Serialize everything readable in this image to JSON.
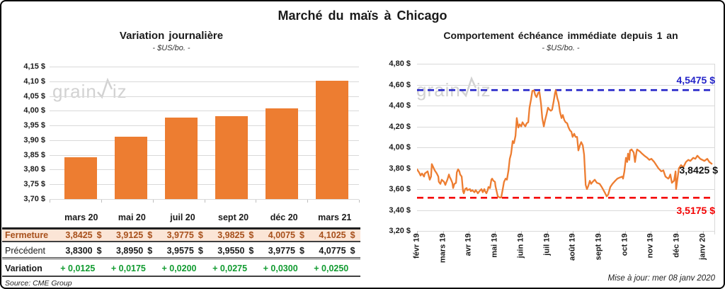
{
  "title": "Marché du maïs à Chicago",
  "watermark": {
    "part1": "grain",
    "part2": "iz"
  },
  "colors": {
    "bar_orange": "#ED7D31",
    "close_text": "#A8511C",
    "close_bg": "#FBE5D6",
    "variation_green": "#119b30",
    "resistance_blue": "#2323C8",
    "support_red": "#F40000",
    "grid": "#D9D9D9"
  },
  "left_chart": {
    "title": "Variation  journalière",
    "subtitle": "- $US/bo. -",
    "chart_data": {
      "type": "bar",
      "categories": [
        "mars 20",
        "mai 20",
        "juil 20",
        "sept 20",
        "déc 20",
        "mars 21"
      ],
      "values": [
        3.8425,
        3.9125,
        3.9775,
        3.9825,
        4.0075,
        4.1025
      ],
      "title": "Variation journalière",
      "xlabel": "",
      "ylabel": "$US/bo.",
      "ylim": [
        3.7,
        4.15
      ],
      "ytick_step": 0.05,
      "grid": true,
      "ytick_labels": [
        "4,15 $",
        "4,10 $",
        "4,05 $",
        "4,00 $",
        "3,95 $",
        "3,90 $",
        "3,85 $",
        "3,80 $",
        "3,75 $",
        "3,70 $"
      ]
    },
    "table": {
      "header": [
        "mars 20",
        "mai 20",
        "juil 20",
        "sept 20",
        "déc 20",
        "mars 21"
      ],
      "currency": "$",
      "rows": [
        {
          "label": "Fermeture",
          "style": "close",
          "suffix": "$",
          "values": [
            "3,8425",
            "3,9125",
            "3,9775",
            "3,9825",
            "4,0075",
            "4,1025"
          ]
        },
        {
          "label": "Précédent",
          "style": "prev",
          "suffix": "$",
          "values": [
            "3,8300",
            "3,8950",
            "3,9575",
            "3,9550",
            "3,9775",
            "4,0775"
          ]
        },
        {
          "label": "Variation",
          "style": "var",
          "suffix": "",
          "values": [
            "+ 0,0125",
            "+ 0,0175",
            "+ 0,0200",
            "+ 0,0275",
            "+ 0,0300",
            "+ 0,0250"
          ]
        }
      ]
    },
    "source": "Source: CME Group"
  },
  "right_chart": {
    "title": "Comportement  échéance immédiate  depuis 1 an",
    "subtitle": "- $US/bo. -",
    "annotations": {
      "high": "4,5475 $",
      "last": "3,8425 $",
      "low": "3,5175 $"
    },
    "updated": "Mise à jour: mer 08 janv 2020",
    "chart_data": {
      "type": "line",
      "x_unit": "months since févr 2019",
      "x_labels": [
        "févr 19",
        "mars 19",
        "avr 19",
        "mai 19",
        "juin 19",
        "juil 19",
        "août 19",
        "sept 19",
        "oct 19",
        "nov 19",
        "déc 19",
        "janv 20"
      ],
      "ylim": [
        3.2,
        4.8
      ],
      "ytick_step": 0.2,
      "grid": true,
      "ytick_labels": [
        "4,80 $",
        "4,60 $",
        "4,40 $",
        "4,20 $",
        "4,00 $",
        "3,80 $",
        "3,60 $",
        "3,40 $",
        "3,20 $"
      ],
      "reference_lines": [
        {
          "value": 4.5475,
          "label": "4,5475 $",
          "color": "#2323C8",
          "style": "dashed"
        },
        {
          "value": 3.5175,
          "label": "3,5175 $",
          "color": "#F40000",
          "style": "dashed"
        }
      ],
      "last_value": 3.8425,
      "points": [
        [
          0.0,
          3.79
        ],
        [
          0.08,
          3.76
        ],
        [
          0.14,
          3.73
        ],
        [
          0.19,
          3.75
        ],
        [
          0.27,
          3.72
        ],
        [
          0.3,
          3.75
        ],
        [
          0.41,
          3.77
        ],
        [
          0.44,
          3.74
        ],
        [
          0.49,
          3.69
        ],
        [
          0.54,
          3.72
        ],
        [
          0.57,
          3.84
        ],
        [
          0.68,
          3.78
        ],
        [
          0.76,
          3.75
        ],
        [
          0.82,
          3.72
        ],
        [
          0.84,
          3.67
        ],
        [
          0.9,
          3.65
        ],
        [
          0.95,
          3.69
        ],
        [
          1.04,
          3.67
        ],
        [
          1.09,
          3.64
        ],
        [
          1.12,
          3.66
        ],
        [
          1.17,
          3.69
        ],
        [
          1.23,
          3.74
        ],
        [
          1.25,
          3.72
        ],
        [
          1.31,
          3.69
        ],
        [
          1.36,
          3.66
        ],
        [
          1.39,
          3.61
        ],
        [
          1.44,
          3.65
        ],
        [
          1.5,
          3.66
        ],
        [
          1.53,
          3.76
        ],
        [
          1.58,
          3.79
        ],
        [
          1.63,
          3.77
        ],
        [
          1.66,
          3.74
        ],
        [
          1.72,
          3.72
        ],
        [
          1.77,
          3.58
        ],
        [
          1.8,
          3.56
        ],
        [
          1.85,
          3.6
        ],
        [
          1.91,
          3.61
        ],
        [
          1.93,
          3.59
        ],
        [
          2.04,
          3.6
        ],
        [
          2.07,
          3.58
        ],
        [
          2.13,
          3.59
        ],
        [
          2.21,
          3.57
        ],
        [
          2.26,
          3.59
        ],
        [
          2.32,
          3.57
        ],
        [
          2.34,
          3.56
        ],
        [
          2.4,
          3.58
        ],
        [
          2.48,
          3.6
        ],
        [
          2.53,
          3.57
        ],
        [
          2.59,
          3.6
        ],
        [
          2.62,
          3.58
        ],
        [
          2.67,
          3.56
        ],
        [
          2.72,
          3.59
        ],
        [
          2.75,
          3.62
        ],
        [
          2.81,
          3.61
        ],
        [
          2.86,
          3.69
        ],
        [
          2.89,
          3.7
        ],
        [
          2.94,
          3.68
        ],
        [
          3.0,
          3.67
        ],
        [
          3.02,
          3.63
        ],
        [
          3.11,
          3.53
        ],
        [
          3.18,
          3.52
        ],
        [
          3.24,
          3.52
        ],
        [
          3.3,
          3.6
        ],
        [
          3.35,
          3.67
        ],
        [
          3.41,
          3.7
        ],
        [
          3.46,
          3.69
        ],
        [
          3.52,
          3.78
        ],
        [
          3.57,
          3.89
        ],
        [
          3.62,
          3.94
        ],
        [
          3.68,
          4.06
        ],
        [
          3.73,
          4.04
        ],
        [
          3.79,
          4.11
        ],
        [
          3.84,
          4.28
        ],
        [
          3.9,
          4.19
        ],
        [
          3.95,
          4.22
        ],
        [
          4.01,
          4.2
        ],
        [
          4.06,
          4.24
        ],
        [
          4.11,
          4.22
        ],
        [
          4.17,
          4.2
        ],
        [
          4.22,
          4.23
        ],
        [
          4.28,
          4.24
        ],
        [
          4.33,
          4.38
        ],
        [
          4.39,
          4.46
        ],
        [
          4.44,
          4.54
        ],
        [
          4.5,
          4.545
        ],
        [
          4.55,
          4.5
        ],
        [
          4.6,
          4.48
        ],
        [
          4.66,
          4.52
        ],
        [
          4.71,
          4.53
        ],
        [
          4.77,
          4.42
        ],
        [
          4.82,
          4.28
        ],
        [
          4.88,
          4.2
        ],
        [
          4.93,
          4.26
        ],
        [
          4.99,
          4.32
        ],
        [
          5.04,
          4.38
        ],
        [
          5.1,
          4.36
        ],
        [
          5.15,
          4.35
        ],
        [
          5.2,
          4.36
        ],
        [
          5.26,
          4.44
        ],
        [
          5.31,
          4.52
        ],
        [
          5.34,
          4.547
        ],
        [
          5.4,
          4.47
        ],
        [
          5.45,
          4.43
        ],
        [
          5.5,
          4.34
        ],
        [
          5.56,
          4.28
        ],
        [
          5.61,
          4.31
        ],
        [
          5.67,
          4.26
        ],
        [
          5.72,
          4.24
        ],
        [
          5.78,
          4.23
        ],
        [
          5.83,
          4.19
        ],
        [
          5.89,
          4.16
        ],
        [
          5.94,
          4.15
        ],
        [
          5.99,
          4.1
        ],
        [
          6.05,
          4.13
        ],
        [
          6.1,
          4.1
        ],
        [
          6.16,
          4.1
        ],
        [
          6.21,
          3.97
        ],
        [
          6.27,
          4.02
        ],
        [
          6.32,
          4.05
        ],
        [
          6.38,
          4.02
        ],
        [
          6.43,
          3.93
        ],
        [
          6.49,
          3.64
        ],
        [
          6.54,
          3.6
        ],
        [
          6.59,
          3.63
        ],
        [
          6.65,
          3.68
        ],
        [
          6.7,
          3.65
        ],
        [
          6.76,
          3.67
        ],
        [
          6.84,
          3.69
        ],
        [
          6.92,
          3.66
        ],
        [
          7.03,
          3.65
        ],
        [
          7.11,
          3.62
        ],
        [
          7.22,
          3.57
        ],
        [
          7.3,
          3.53
        ],
        [
          7.36,
          3.55
        ],
        [
          7.44,
          3.62
        ],
        [
          7.52,
          3.65
        ],
        [
          7.63,
          3.68
        ],
        [
          7.71,
          3.7
        ],
        [
          7.79,
          3.71
        ],
        [
          7.9,
          3.72
        ],
        [
          7.93,
          3.7
        ],
        [
          7.98,
          3.77
        ],
        [
          8.04,
          3.9
        ],
        [
          8.09,
          3.86
        ],
        [
          8.12,
          3.94
        ],
        [
          8.17,
          3.88
        ],
        [
          8.2,
          3.97
        ],
        [
          8.26,
          3.98
        ],
        [
          8.34,
          3.95
        ],
        [
          8.39,
          3.86
        ],
        [
          8.45,
          3.96
        ],
        [
          8.47,
          3.98
        ],
        [
          8.58,
          3.96
        ],
        [
          8.66,
          3.94
        ],
        [
          8.75,
          3.92
        ],
        [
          8.86,
          3.9
        ],
        [
          8.94,
          3.88
        ],
        [
          9.02,
          3.89
        ],
        [
          9.13,
          3.86
        ],
        [
          9.21,
          3.83
        ],
        [
          9.29,
          3.8
        ],
        [
          9.4,
          3.77
        ],
        [
          9.48,
          3.78
        ],
        [
          9.56,
          3.72
        ],
        [
          9.67,
          3.7
        ],
        [
          9.7,
          3.71
        ],
        [
          9.75,
          3.74
        ],
        [
          9.81,
          3.66
        ],
        [
          9.89,
          3.68
        ],
        [
          9.95,
          3.77
        ],
        [
          9.97,
          3.6
        ],
        [
          10.08,
          3.8
        ],
        [
          10.16,
          3.83
        ],
        [
          10.25,
          3.81
        ],
        [
          10.35,
          3.86
        ],
        [
          10.44,
          3.88
        ],
        [
          10.52,
          3.87
        ],
        [
          10.63,
          3.9
        ],
        [
          10.71,
          3.89
        ],
        [
          10.79,
          3.92
        ],
        [
          10.9,
          3.89
        ],
        [
          10.98,
          3.88
        ],
        [
          11.06,
          3.87
        ],
        [
          11.17,
          3.89
        ],
        [
          11.25,
          3.86
        ],
        [
          11.34,
          3.8425
        ]
      ]
    }
  }
}
